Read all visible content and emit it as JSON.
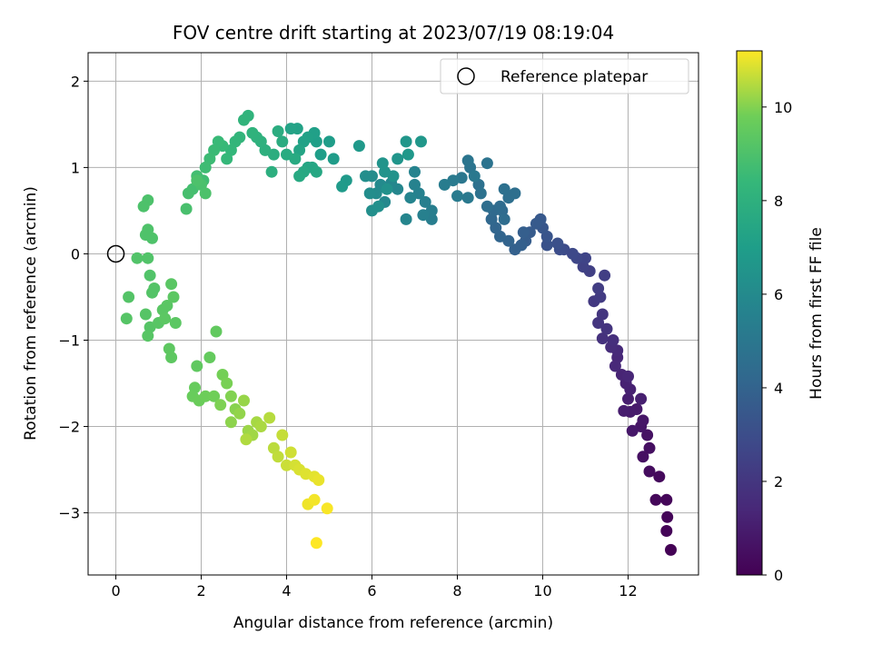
{
  "chart_data": {
    "type": "scatter",
    "title": "FOV centre drift starting at 2023/07/19 08:19:04",
    "xlabel": "Angular distance from reference (arcmin)",
    "ylabel": "Rotation from reference (arcmin)",
    "xlim": [
      -0.65,
      13.65
    ],
    "ylim": [
      -3.72,
      2.33
    ],
    "xticks": [
      0,
      2,
      4,
      6,
      8,
      10,
      12
    ],
    "yticks": [
      -3,
      -2,
      -1,
      0,
      1,
      2
    ],
    "grid": true,
    "legend": {
      "placement": "upper right",
      "entries": [
        {
          "label": "Reference platepar",
          "marker": "open-circle"
        }
      ]
    },
    "reference_point": {
      "x": 0,
      "y": 0
    },
    "colorbar": {
      "label": "Hours from first FF file",
      "colormap": "viridis",
      "range": [
        0,
        11.2
      ],
      "ticks": [
        0,
        2,
        4,
        6,
        8,
        10
      ]
    },
    "series": [
      {
        "points": [
          [
            13.0,
            -3.43,
            0.05
          ],
          [
            12.9,
            -3.21,
            0.1
          ],
          [
            12.92,
            -3.05,
            0.15
          ],
          [
            12.9,
            -2.85,
            0.2
          ],
          [
            12.65,
            -2.85,
            0.25
          ],
          [
            12.73,
            -2.58,
            0.3
          ],
          [
            12.5,
            -2.52,
            0.4
          ],
          [
            12.5,
            -2.25,
            0.5
          ],
          [
            12.35,
            -2.35,
            0.55
          ],
          [
            12.45,
            -2.1,
            0.6
          ],
          [
            12.3,
            -2.0,
            0.7
          ],
          [
            12.35,
            -1.93,
            0.75
          ],
          [
            12.1,
            -2.05,
            0.8
          ],
          [
            12.2,
            -1.8,
            0.9
          ],
          [
            12.05,
            -1.83,
            0.95
          ],
          [
            11.9,
            -1.82,
            1.0
          ],
          [
            12.0,
            -1.68,
            1.05
          ],
          [
            12.3,
            -1.68,
            1.1
          ],
          [
            12.05,
            -1.57,
            1.15
          ],
          [
            11.95,
            -1.5,
            1.2
          ],
          [
            11.85,
            -1.4,
            1.3
          ],
          [
            12.0,
            -1.42,
            1.35
          ],
          [
            11.75,
            -1.2,
            1.4
          ],
          [
            11.7,
            -1.3,
            1.45
          ],
          [
            11.75,
            -1.12,
            1.5
          ],
          [
            11.6,
            -1.08,
            1.6
          ],
          [
            11.65,
            -1.0,
            1.7
          ],
          [
            11.4,
            -0.98,
            1.8
          ],
          [
            11.5,
            -0.87,
            1.9
          ],
          [
            11.3,
            -0.8,
            1.95
          ],
          [
            11.4,
            -0.7,
            2.0
          ],
          [
            11.2,
            -0.55,
            2.1
          ],
          [
            11.35,
            -0.5,
            2.2
          ],
          [
            11.3,
            -0.4,
            2.3
          ],
          [
            11.45,
            -0.25,
            2.35
          ],
          [
            11.1,
            -0.2,
            2.4
          ],
          [
            10.95,
            -0.15,
            2.5
          ],
          [
            11.0,
            -0.05,
            2.6
          ],
          [
            10.8,
            -0.05,
            2.7
          ],
          [
            10.7,
            0.0,
            2.8
          ],
          [
            10.5,
            0.05,
            2.9
          ],
          [
            10.4,
            0.05,
            3.0
          ],
          [
            10.35,
            0.12,
            3.1
          ],
          [
            10.1,
            0.1,
            3.2
          ],
          [
            10.1,
            0.2,
            3.3
          ],
          [
            10.0,
            0.3,
            3.4
          ],
          [
            9.95,
            0.4,
            3.5
          ],
          [
            9.85,
            0.35,
            3.55
          ],
          [
            9.7,
            0.25,
            3.6
          ],
          [
            9.6,
            0.15,
            3.7
          ],
          [
            9.55,
            0.25,
            3.8
          ],
          [
            9.5,
            0.1,
            3.85
          ],
          [
            9.35,
            0.05,
            3.9
          ],
          [
            9.2,
            0.15,
            4.0
          ],
          [
            9.0,
            0.2,
            4.05
          ],
          [
            8.9,
            0.3,
            4.1
          ],
          [
            8.8,
            0.4,
            4.2
          ],
          [
            8.85,
            0.5,
            4.3
          ],
          [
            9.05,
            0.5,
            4.35
          ],
          [
            9.0,
            0.55,
            4.4
          ],
          [
            9.1,
            0.4,
            4.45
          ],
          [
            8.7,
            0.55,
            4.5
          ],
          [
            9.2,
            0.65,
            4.55
          ],
          [
            9.35,
            0.7,
            4.6
          ],
          [
            9.1,
            0.75,
            4.65
          ],
          [
            8.5,
            0.8,
            4.7
          ],
          [
            8.55,
            0.7,
            4.75
          ],
          [
            8.7,
            1.05,
            4.8
          ],
          [
            8.3,
            1.0,
            4.85
          ],
          [
            8.25,
            1.08,
            4.9
          ],
          [
            8.1,
            0.88,
            5.0
          ],
          [
            8.4,
            0.9,
            5.05
          ],
          [
            8.25,
            0.65,
            5.1
          ],
          [
            7.9,
            0.85,
            5.15
          ],
          [
            8.0,
            0.67,
            5.2
          ],
          [
            7.7,
            0.8,
            5.3
          ],
          [
            7.4,
            0.4,
            5.35
          ],
          [
            7.4,
            0.5,
            5.4
          ],
          [
            7.25,
            0.6,
            5.45
          ],
          [
            7.2,
            0.45,
            5.5
          ],
          [
            7.1,
            0.7,
            5.55
          ],
          [
            7.0,
            0.8,
            5.6
          ],
          [
            7.0,
            0.95,
            5.65
          ],
          [
            6.9,
            0.65,
            5.7
          ],
          [
            6.8,
            0.4,
            5.75
          ],
          [
            6.6,
            0.75,
            5.8
          ],
          [
            6.45,
            0.82,
            5.85
          ],
          [
            6.3,
            0.6,
            5.9
          ],
          [
            6.2,
            0.8,
            6.0
          ],
          [
            6.1,
            0.7,
            6.05
          ],
          [
            6.0,
            0.9,
            6.1
          ],
          [
            5.95,
            0.7,
            6.15
          ],
          [
            5.85,
            0.9,
            6.2
          ],
          [
            6.0,
            0.5,
            6.25
          ],
          [
            6.15,
            0.55,
            6.3
          ],
          [
            6.35,
            0.75,
            6.35
          ],
          [
            6.5,
            0.9,
            6.4
          ],
          [
            6.3,
            0.95,
            6.45
          ],
          [
            6.25,
            1.05,
            6.5
          ],
          [
            6.6,
            1.1,
            6.55
          ],
          [
            6.8,
            1.3,
            6.6
          ],
          [
            7.15,
            1.3,
            6.65
          ],
          [
            6.85,
            1.15,
            6.7
          ],
          [
            5.7,
            1.25,
            6.75
          ],
          [
            5.4,
            0.85,
            6.8
          ],
          [
            5.3,
            0.78,
            6.85
          ],
          [
            5.1,
            1.1,
            6.9
          ],
          [
            5.0,
            1.3,
            6.95
          ],
          [
            4.8,
            1.15,
            7.0
          ],
          [
            4.7,
            1.3,
            7.05
          ],
          [
            4.65,
            1.4,
            7.1
          ],
          [
            4.5,
            1.35,
            7.15
          ],
          [
            4.4,
            1.3,
            7.2
          ],
          [
            4.25,
            1.45,
            7.25
          ],
          [
            4.1,
            1.45,
            7.3
          ],
          [
            4.3,
            1.2,
            7.35
          ],
          [
            4.5,
            1.0,
            7.4
          ],
          [
            4.6,
            1.0,
            7.45
          ],
          [
            4.7,
            0.95,
            7.5
          ],
          [
            4.4,
            0.95,
            7.55
          ],
          [
            4.3,
            0.9,
            7.6
          ],
          [
            4.2,
            1.1,
            7.65
          ],
          [
            4.0,
            1.15,
            7.7
          ],
          [
            3.9,
            1.3,
            7.75
          ],
          [
            3.8,
            1.42,
            7.8
          ],
          [
            3.7,
            1.15,
            7.85
          ],
          [
            3.65,
            0.95,
            7.9
          ],
          [
            3.5,
            1.2,
            7.95
          ],
          [
            3.4,
            1.3,
            8.0
          ],
          [
            3.3,
            1.35,
            8.05
          ],
          [
            3.2,
            1.4,
            8.1
          ],
          [
            3.1,
            1.6,
            8.15
          ],
          [
            3.0,
            1.55,
            8.2
          ],
          [
            2.9,
            1.35,
            8.25
          ],
          [
            2.8,
            1.3,
            8.3
          ],
          [
            2.7,
            1.2,
            8.35
          ],
          [
            2.6,
            1.1,
            8.4
          ],
          [
            2.5,
            1.25,
            8.45
          ],
          [
            2.4,
            1.3,
            8.5
          ],
          [
            2.3,
            1.2,
            8.55
          ],
          [
            2.2,
            1.1,
            8.6
          ],
          [
            2.1,
            1.0,
            8.65
          ],
          [
            2.05,
            0.85,
            8.7
          ],
          [
            1.9,
            0.9,
            8.75
          ],
          [
            1.8,
            0.75,
            8.8
          ],
          [
            1.7,
            0.7,
            8.85
          ],
          [
            1.65,
            0.52,
            8.9
          ],
          [
            2.0,
            0.8,
            8.95
          ],
          [
            2.1,
            0.7,
            9.0
          ],
          [
            1.9,
            0.85,
            9.0
          ],
          [
            0.75,
            0.62,
            9.0
          ],
          [
            0.65,
            0.55,
            9.0
          ],
          [
            0.75,
            0.28,
            9.05
          ],
          [
            0.7,
            0.22,
            9.05
          ],
          [
            0.85,
            0.18,
            9.05
          ],
          [
            0.5,
            -0.05,
            9.1
          ],
          [
            0.75,
            -0.05,
            9.1
          ],
          [
            0.8,
            -0.25,
            9.1
          ],
          [
            0.85,
            -0.45,
            9.15
          ],
          [
            0.9,
            -0.4,
            9.15
          ],
          [
            0.3,
            -0.5,
            9.15
          ],
          [
            0.25,
            -0.75,
            9.2
          ],
          [
            0.7,
            -0.7,
            9.2
          ],
          [
            0.8,
            -0.85,
            9.2
          ],
          [
            0.75,
            -0.95,
            9.25
          ],
          [
            1.0,
            -0.8,
            9.25
          ],
          [
            1.1,
            -0.65,
            9.3
          ],
          [
            1.2,
            -0.6,
            9.3
          ],
          [
            1.3,
            -0.35,
            9.3
          ],
          [
            1.35,
            -0.5,
            9.35
          ],
          [
            1.15,
            -0.75,
            9.35
          ],
          [
            1.4,
            -0.8,
            9.35
          ],
          [
            1.25,
            -1.1,
            9.4
          ],
          [
            1.3,
            -1.2,
            9.4
          ],
          [
            1.9,
            -1.3,
            9.45
          ],
          [
            2.35,
            -0.9,
            9.5
          ],
          [
            2.2,
            -1.2,
            9.55
          ],
          [
            1.85,
            -1.55,
            9.6
          ],
          [
            1.8,
            -1.65,
            9.65
          ],
          [
            1.95,
            -1.7,
            9.7
          ],
          [
            2.1,
            -1.65,
            9.75
          ],
          [
            2.3,
            -1.65,
            9.8
          ],
          [
            2.5,
            -1.4,
            9.85
          ],
          [
            2.6,
            -1.5,
            9.9
          ],
          [
            2.45,
            -1.75,
            9.95
          ],
          [
            2.7,
            -1.65,
            10.0
          ],
          [
            2.8,
            -1.8,
            10.05
          ],
          [
            2.7,
            -1.95,
            10.1
          ],
          [
            2.9,
            -1.85,
            10.15
          ],
          [
            3.0,
            -1.7,
            10.2
          ],
          [
            3.1,
            -2.05,
            10.25
          ],
          [
            3.2,
            -2.1,
            10.3
          ],
          [
            3.3,
            -1.95,
            10.35
          ],
          [
            3.4,
            -2.0,
            10.4
          ],
          [
            3.05,
            -2.15,
            10.45
          ],
          [
            3.6,
            -1.9,
            10.5
          ],
          [
            3.7,
            -2.25,
            10.55
          ],
          [
            3.8,
            -2.35,
            10.6
          ],
          [
            3.9,
            -2.1,
            10.65
          ],
          [
            4.0,
            -2.45,
            10.7
          ],
          [
            4.1,
            -2.3,
            10.75
          ],
          [
            4.2,
            -2.45,
            10.8
          ],
          [
            4.3,
            -2.5,
            10.85
          ],
          [
            4.45,
            -2.55,
            10.9
          ],
          [
            4.65,
            -2.58,
            10.95
          ],
          [
            4.75,
            -2.62,
            11.0
          ],
          [
            4.5,
            -2.9,
            11.05
          ],
          [
            4.65,
            -2.85,
            11.1
          ],
          [
            4.95,
            -2.95,
            11.15
          ],
          [
            4.7,
            -3.35,
            11.2
          ]
        ]
      }
    ]
  }
}
